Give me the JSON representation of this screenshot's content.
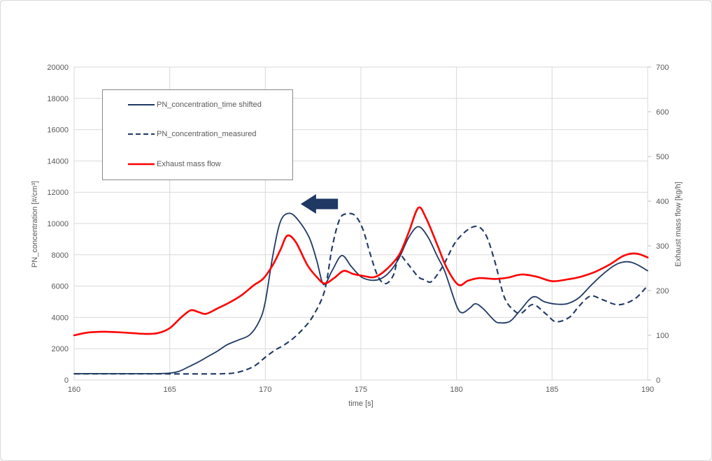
{
  "figure": {
    "type": "excel-line-chart",
    "background": "#ffffff",
    "border_color": "#d9d9d9"
  },
  "chart_data": {
    "type": "line",
    "title": "",
    "xlabel": "time [s]",
    "ylabel_left": "PN_concentration [#/cm³]",
    "ylabel_right": "Exhaust mass flow [kg/h]",
    "x_range": [
      160,
      190
    ],
    "x_ticks": [
      160,
      165,
      170,
      175,
      180,
      185,
      190
    ],
    "y_left_range": [
      0,
      20000
    ],
    "y_left_ticks": [
      0,
      2000,
      4000,
      6000,
      8000,
      10000,
      12000,
      14000,
      16000,
      18000,
      20000
    ],
    "y_right_range": [
      0,
      700
    ],
    "y_right_ticks": [
      0,
      100,
      200,
      300,
      400,
      500,
      600,
      700
    ],
    "grid": true,
    "colors": {
      "pn_line": "#1f3864",
      "exhaust_line": "#ff0000",
      "gridline": "#d9d9d9",
      "axis_text": "#595959",
      "legend_border": "#898989",
      "arrow": "#1f3864"
    },
    "legend": {
      "position": "inside-top-left"
    },
    "annotation": {
      "shape": "block-arrow-left",
      "axis": "left",
      "time_tip": 171.85,
      "time_tail": 173.8,
      "value": 11250,
      "color": "#1f3864"
    },
    "series": [
      {
        "name": "PN_concentration_time shifted",
        "axis": "left",
        "style": "solid",
        "color": "#1f3864",
        "width": 1.8,
        "points": [
          [
            160,
            400
          ],
          [
            160.5,
            400
          ],
          [
            161,
            405
          ],
          [
            161.5,
            400
          ],
          [
            162,
            400
          ],
          [
            162.5,
            400
          ],
          [
            163,
            400
          ],
          [
            163.5,
            400
          ],
          [
            164,
            400
          ],
          [
            164.5,
            410
          ],
          [
            165,
            440
          ],
          [
            165.5,
            560
          ],
          [
            166,
            850
          ],
          [
            166.5,
            1150
          ],
          [
            167,
            1500
          ],
          [
            167.5,
            1850
          ],
          [
            168,
            2250
          ],
          [
            168.6,
            2560
          ],
          [
            169.2,
            2900
          ],
          [
            169.7,
            3800
          ],
          [
            170,
            5000
          ],
          [
            170.4,
            8000
          ],
          [
            170.8,
            10150
          ],
          [
            171.25,
            10650
          ],
          [
            171.7,
            10250
          ],
          [
            172.3,
            9100
          ],
          [
            172.7,
            7600
          ],
          [
            173.05,
            6100
          ],
          [
            173.5,
            7000
          ],
          [
            174,
            7950
          ],
          [
            174.5,
            7250
          ],
          [
            175,
            6600
          ],
          [
            175.5,
            6380
          ],
          [
            176,
            6450
          ],
          [
            176.5,
            6900
          ],
          [
            177,
            7800
          ],
          [
            177.5,
            9100
          ],
          [
            178,
            9800
          ],
          [
            178.5,
            9150
          ],
          [
            179,
            7900
          ],
          [
            179.4,
            6900
          ],
          [
            180,
            4750
          ],
          [
            180.3,
            4300
          ],
          [
            180.7,
            4600
          ],
          [
            181,
            4870
          ],
          [
            181.4,
            4550
          ],
          [
            182,
            3780
          ],
          [
            182.3,
            3650
          ],
          [
            182.8,
            3750
          ],
          [
            183.3,
            4400
          ],
          [
            184,
            5310
          ],
          [
            184.6,
            5000
          ],
          [
            185.2,
            4850
          ],
          [
            185.8,
            4880
          ],
          [
            186.4,
            5250
          ],
          [
            187,
            6000
          ],
          [
            187.6,
            6700
          ],
          [
            188.3,
            7350
          ],
          [
            188.9,
            7560
          ],
          [
            189.4,
            7400
          ],
          [
            190,
            6980
          ]
        ]
      },
      {
        "name": "PN_concentration_measured",
        "axis": "left",
        "style": "dashed",
        "color": "#1f3864",
        "width": 2.1,
        "points": [
          [
            160,
            395
          ],
          [
            161,
            395
          ],
          [
            162,
            395
          ],
          [
            163,
            395
          ],
          [
            164,
            395
          ],
          [
            165,
            390
          ],
          [
            166,
            388
          ],
          [
            167,
            390
          ],
          [
            167.8,
            400
          ],
          [
            168.4,
            450
          ],
          [
            169,
            650
          ],
          [
            169.5,
            950
          ],
          [
            170,
            1450
          ],
          [
            170.5,
            1900
          ],
          [
            171,
            2250
          ],
          [
            171.5,
            2700
          ],
          [
            172,
            3300
          ],
          [
            172.5,
            4100
          ],
          [
            173.1,
            5700
          ],
          [
            173.5,
            8500
          ],
          [
            173.9,
            10300
          ],
          [
            174.3,
            10620
          ],
          [
            174.7,
            10500
          ],
          [
            175.1,
            9650
          ],
          [
            175.5,
            8000
          ],
          [
            175.9,
            6600
          ],
          [
            176.3,
            6160
          ],
          [
            176.7,
            6700
          ],
          [
            177,
            7950
          ],
          [
            177.4,
            7500
          ],
          [
            178,
            6600
          ],
          [
            178.35,
            6400
          ],
          [
            178.7,
            6300
          ],
          [
            179.3,
            7300
          ],
          [
            180,
            8900
          ],
          [
            180.9,
            9800
          ],
          [
            181.5,
            9350
          ],
          [
            182,
            7600
          ],
          [
            182.5,
            5300
          ],
          [
            183,
            4450
          ],
          [
            183.4,
            4280
          ],
          [
            184,
            4820
          ],
          [
            184.7,
            4200
          ],
          [
            185.2,
            3720
          ],
          [
            185.9,
            4000
          ],
          [
            186.4,
            4700
          ],
          [
            187,
            5360
          ],
          [
            187.6,
            5150
          ],
          [
            188.3,
            4830
          ],
          [
            188.8,
            4880
          ],
          [
            189.4,
            5250
          ],
          [
            190,
            6030
          ]
        ]
      },
      {
        "name": "Exhaust mass flow",
        "axis": "right",
        "style": "solid",
        "color": "#ff0000",
        "width": 2.6,
        "points": [
          [
            160,
            100
          ],
          [
            160.7,
            106
          ],
          [
            161.5,
            108
          ],
          [
            162.2,
            107
          ],
          [
            163,
            105
          ],
          [
            163.8,
            103
          ],
          [
            164.4,
            105
          ],
          [
            165,
            116
          ],
          [
            165.6,
            140
          ],
          [
            166.1,
            156
          ],
          [
            166.5,
            152
          ],
          [
            166.9,
            148
          ],
          [
            167.5,
            160
          ],
          [
            168.2,
            175
          ],
          [
            168.8,
            191
          ],
          [
            169.4,
            212
          ],
          [
            169.9,
            227
          ],
          [
            170.4,
            258
          ],
          [
            170.8,
            292
          ],
          [
            171.15,
            323
          ],
          [
            171.6,
            308
          ],
          [
            172.2,
            257
          ],
          [
            172.7,
            230
          ],
          [
            173.1,
            216
          ],
          [
            173.6,
            228
          ],
          [
            174.1,
            244
          ],
          [
            174.6,
            237
          ],
          [
            175.1,
            233
          ],
          [
            175.7,
            230
          ],
          [
            176.3,
            246
          ],
          [
            177,
            280
          ],
          [
            177.5,
            330
          ],
          [
            178,
            385
          ],
          [
            178.4,
            363
          ],
          [
            179,
            302
          ],
          [
            179.5,
            250
          ],
          [
            180.1,
            213
          ],
          [
            180.6,
            222
          ],
          [
            181.2,
            228
          ],
          [
            182,
            226
          ],
          [
            182.7,
            229
          ],
          [
            183.4,
            236
          ],
          [
            184.2,
            231
          ],
          [
            185,
            221
          ],
          [
            185.8,
            225
          ],
          [
            186.5,
            231
          ],
          [
            187.2,
            241
          ],
          [
            188,
            258
          ],
          [
            188.7,
            277
          ],
          [
            189.2,
            283
          ],
          [
            189.6,
            281
          ],
          [
            190,
            274
          ]
        ]
      }
    ]
  }
}
